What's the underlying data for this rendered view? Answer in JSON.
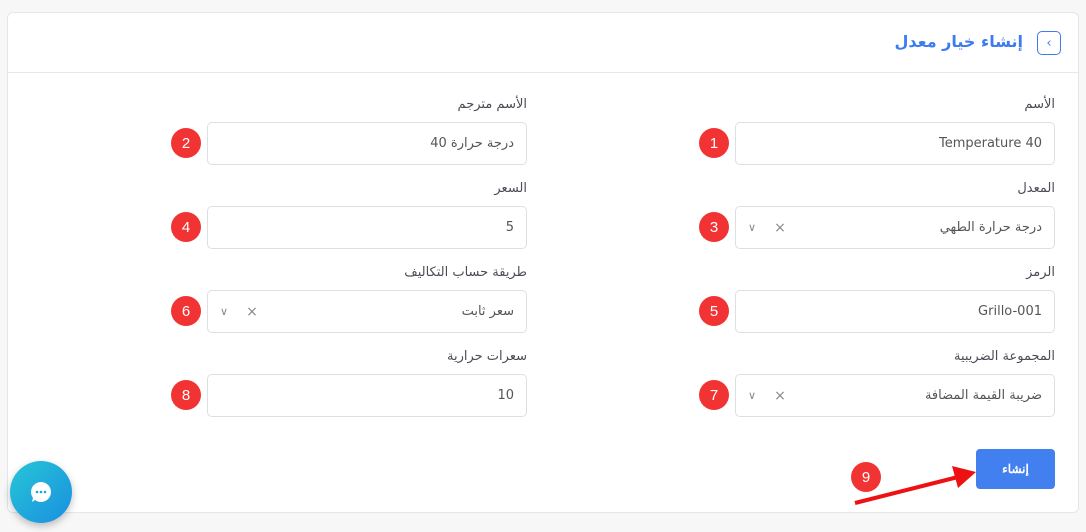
{
  "header": {
    "title": "إنشاء خيار معدل",
    "back_icon": "chevron-left-icon"
  },
  "fields": [
    {
      "label": "الأسم",
      "value": "Temperature 40",
      "badge": "1",
      "type": "text"
    },
    {
      "label": "الأسم مترجم",
      "value": "درجة حرارة 40",
      "badge": "2",
      "type": "text"
    },
    {
      "label": "المعدل",
      "value": "درجة حرارة الطهي",
      "badge": "3",
      "type": "select"
    },
    {
      "label": "السعر",
      "value": "5",
      "badge": "4",
      "type": "text"
    },
    {
      "label": "الرمز",
      "value": "Grillo-001",
      "badge": "5",
      "type": "text"
    },
    {
      "label": "طريقة حساب التكاليف",
      "value": "سعر ثابت",
      "badge": "6",
      "type": "select"
    },
    {
      "label": "المجموعة الضريبية",
      "value": "ضريبة القيمة المضافة",
      "badge": "7",
      "type": "select"
    },
    {
      "label": "سعرات حرارية",
      "value": "10",
      "badge": "8",
      "type": "text"
    }
  ],
  "submit": {
    "label": "إنشاء",
    "badge": "9"
  },
  "symbols": {
    "clear": "×",
    "chevron": "⌄"
  },
  "colors": {
    "accent": "#4380ef",
    "badge": "#f23333",
    "arrow": "#ee1111"
  }
}
